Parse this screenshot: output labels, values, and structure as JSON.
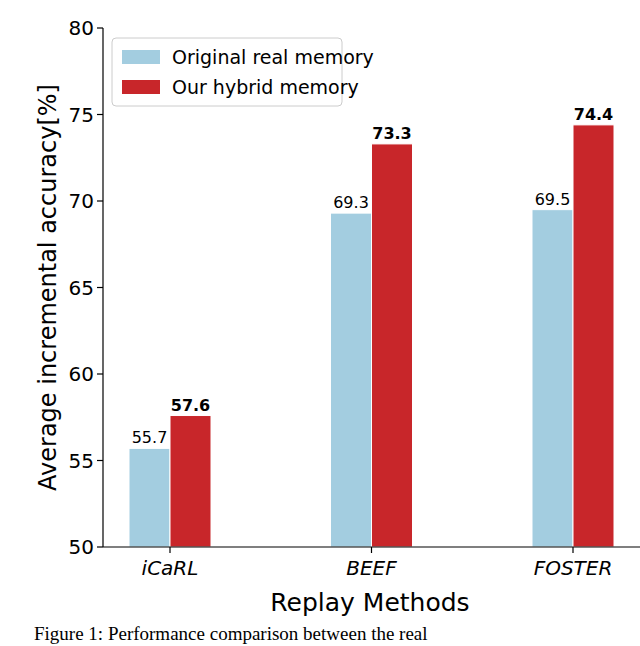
{
  "chart_data": {
    "type": "bar",
    "x_label": "Replay Methods",
    "y_label": "Average incremental accuracy[%]",
    "categories": [
      "iCaRL",
      "BEEF",
      "FOSTER"
    ],
    "series": [
      {
        "name": "Original real memory",
        "color": "#a3cde0",
        "values": [
          55.7,
          69.3,
          69.5
        ]
      },
      {
        "name": "Our hybrid memory",
        "color": "#c8262a",
        "values": [
          57.6,
          73.3,
          74.4
        ]
      }
    ],
    "ylim": [
      50,
      80
    ],
    "yticks": [
      50,
      55,
      60,
      65,
      70,
      75,
      80
    ],
    "grid": false,
    "legend": "upper left",
    "data_labels": true,
    "annotations": [
      "Figure 1:  Performance comparison between the real"
    ]
  }
}
